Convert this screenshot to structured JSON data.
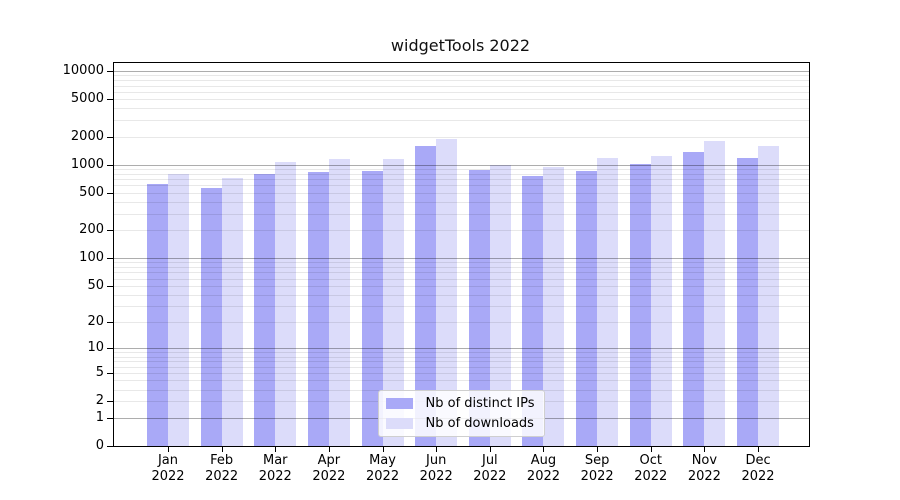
{
  "chart_data": {
    "type": "bar",
    "title": "widgetTools 2022",
    "y_scale": "log1p",
    "grid": true,
    "legend_position": "lower center",
    "y_ticks": [
      10000,
      5000,
      2000,
      1000,
      500,
      200,
      100,
      50,
      20,
      10,
      5,
      2,
      1,
      0
    ],
    "y_max_tick": 10000,
    "x_categories": [
      "Jan",
      "Feb",
      "Mar",
      "Apr",
      "May",
      "Jun",
      "Jul",
      "Aug",
      "Sep",
      "Oct",
      "Nov",
      "Dec"
    ],
    "x_year": "2022",
    "series": [
      {
        "key": "distinct-ips",
        "name": "Nb of distinct IPs",
        "color": "#a9a9f7",
        "values": [
          615,
          565,
          805,
          830,
          855,
          1600,
          875,
          755,
          858,
          1020,
          1380,
          1180
        ]
      },
      {
        "key": "downloads",
        "name": "Nb of downloads",
        "color": "#dcdcfa",
        "values": [
          800,
          730,
          1080,
          1160,
          1145,
          1870,
          1005,
          935,
          1185,
          1245,
          1795,
          1590
        ]
      }
    ],
    "colors": {
      "major_grid": "#aeaeae",
      "minor_grid": "#e8e8e8",
      "spine": "#000000",
      "background": "#ffffff"
    }
  }
}
